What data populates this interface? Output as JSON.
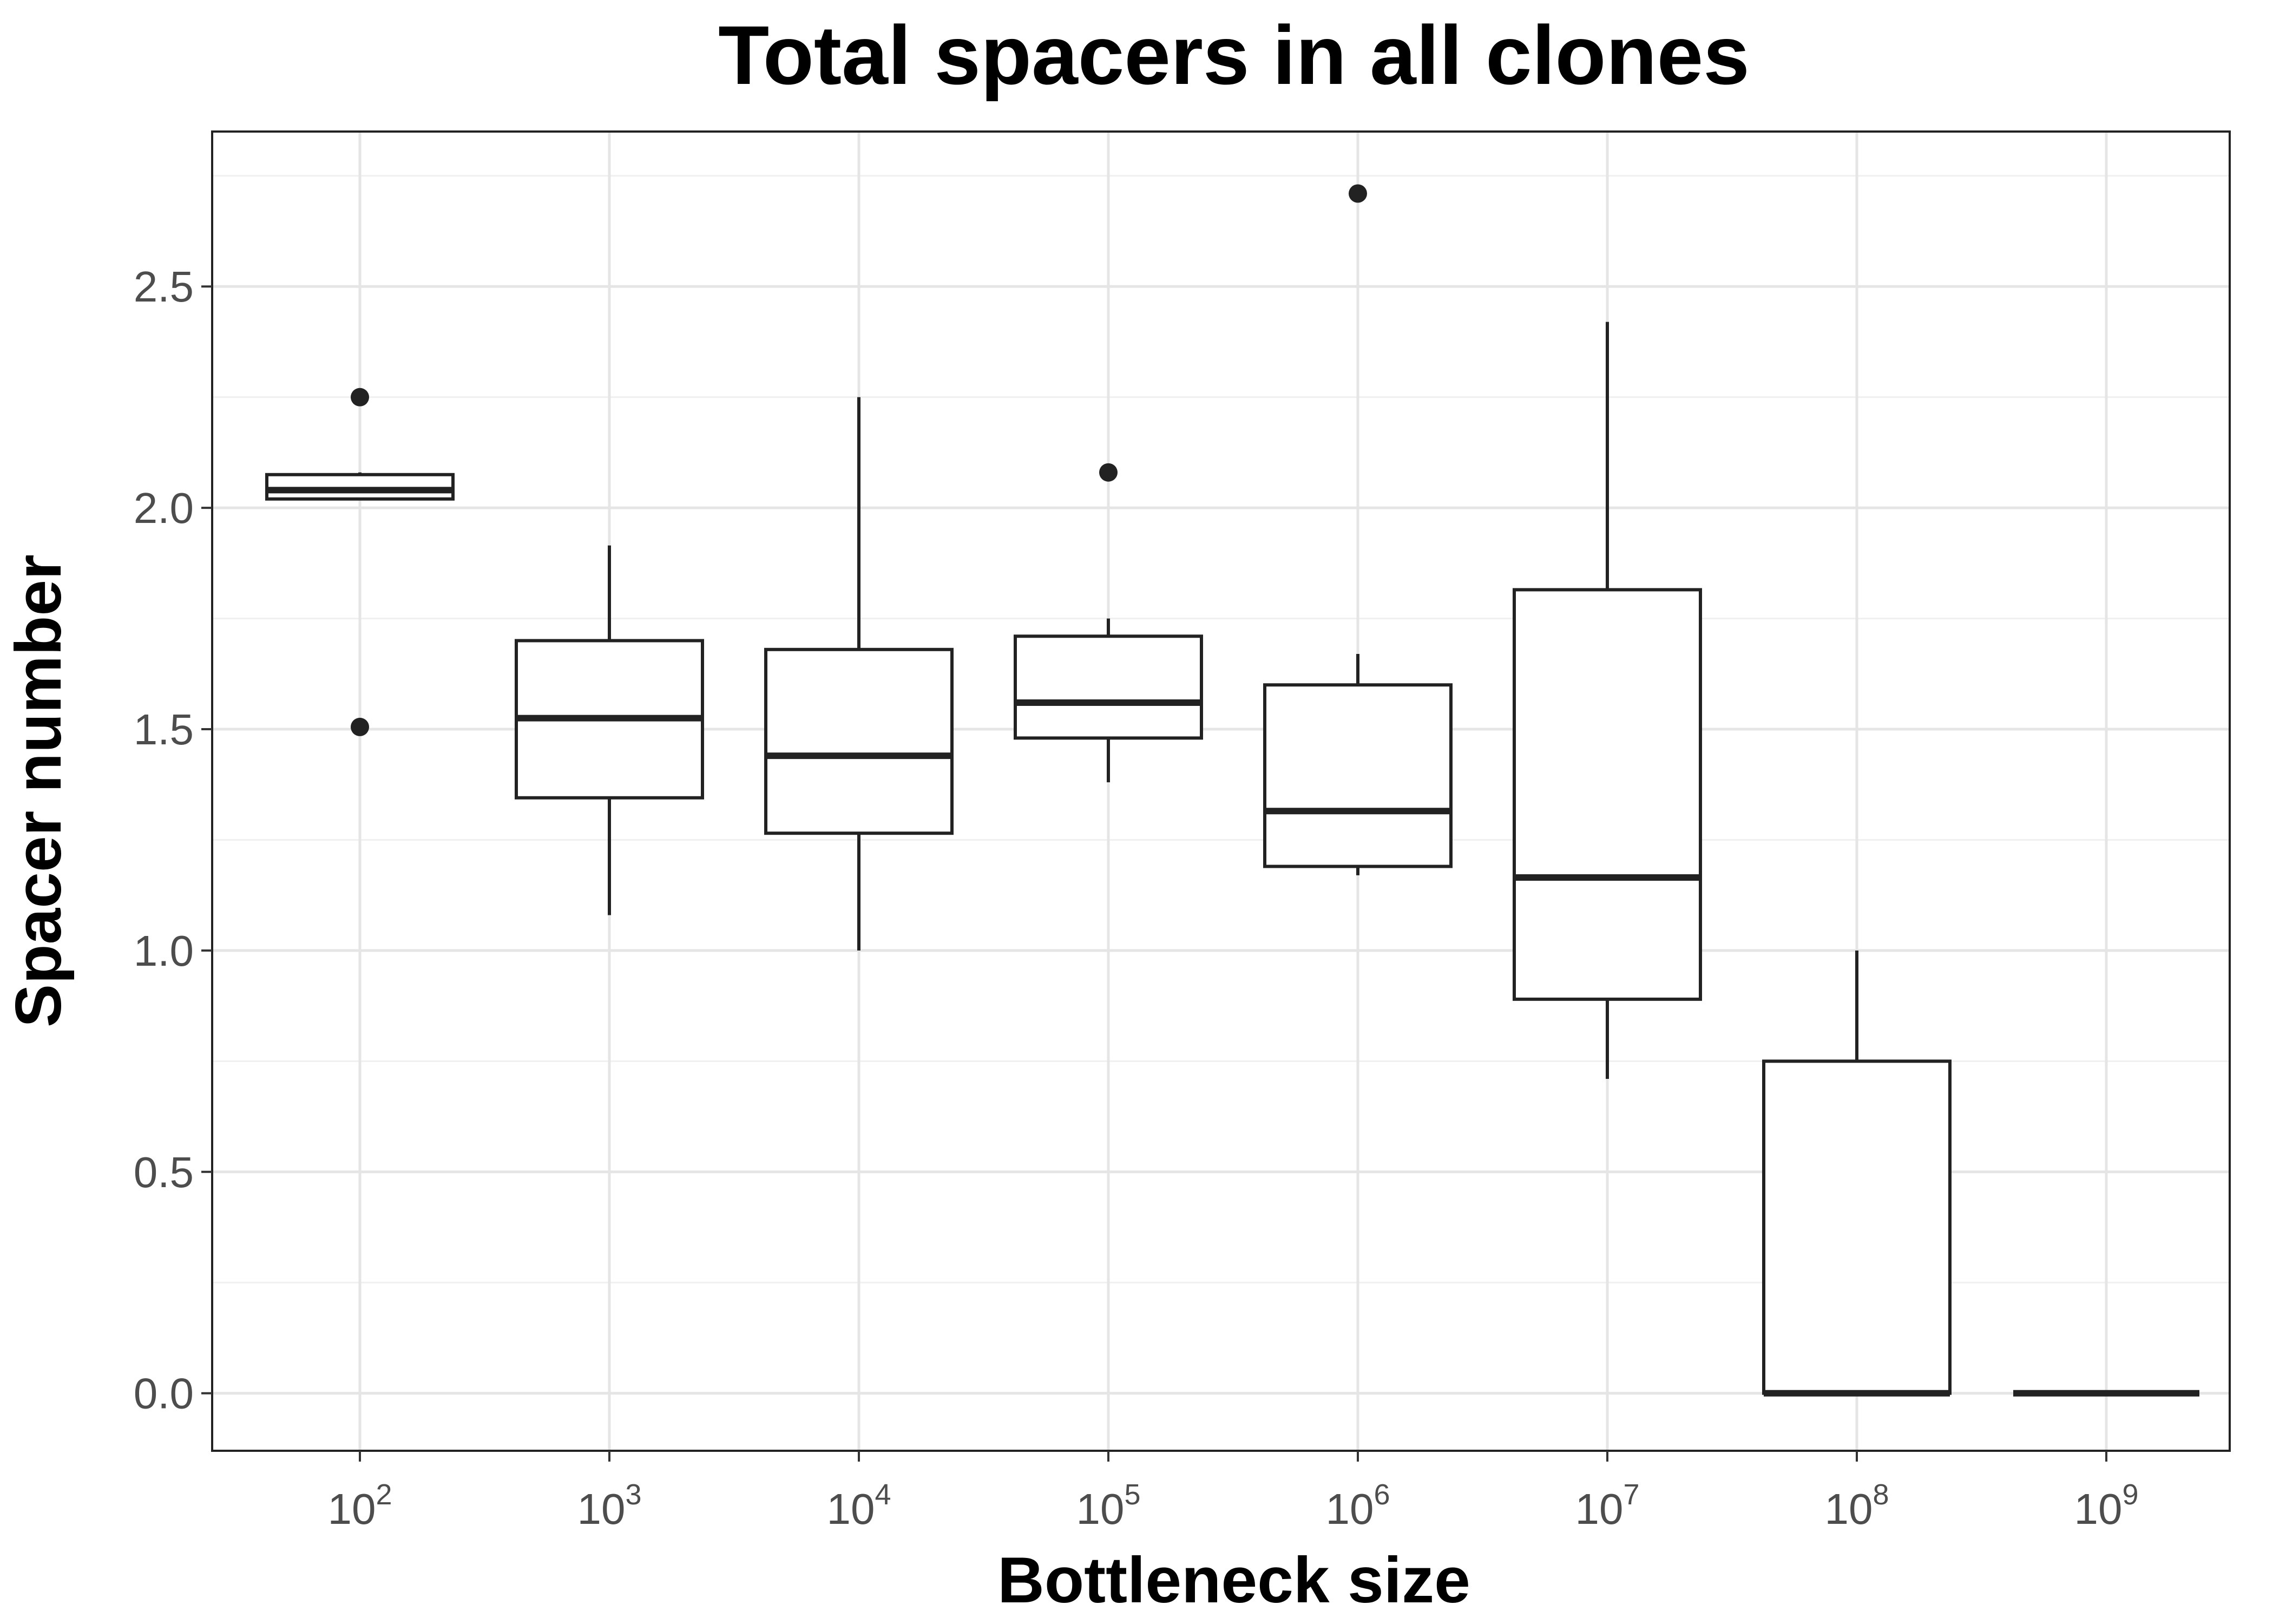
{
  "chart_data": {
    "type": "box",
    "title": "Total spacers in all clones",
    "xlabel": "Bottleneck size",
    "ylabel": "Spacer number",
    "ylim": [
      -0.13,
      2.85
    ],
    "yticks": [
      "0.0",
      "0.5",
      "1.0",
      "1.5",
      "2.0",
      "2.5"
    ],
    "grid": true,
    "categories": [
      {
        "base": "10",
        "exp": "2"
      },
      {
        "base": "10",
        "exp": "3"
      },
      {
        "base": "10",
        "exp": "4"
      },
      {
        "base": "10",
        "exp": "5"
      },
      {
        "base": "10",
        "exp": "6"
      },
      {
        "base": "10",
        "exp": "7"
      },
      {
        "base": "10",
        "exp": "8"
      },
      {
        "base": "10",
        "exp": "9"
      }
    ],
    "boxes": [
      {
        "whisker_low": 2.02,
        "q1": 2.02,
        "median": 2.04,
        "q3": 2.075,
        "whisker_high": 2.08,
        "outliers": [
          2.25,
          1.505
        ]
      },
      {
        "whisker_low": 1.08,
        "q1": 1.345,
        "median": 1.525,
        "q3": 1.7,
        "whisker_high": 1.915,
        "outliers": []
      },
      {
        "whisker_low": 1.0,
        "q1": 1.265,
        "median": 1.44,
        "q3": 1.68,
        "whisker_high": 2.25,
        "outliers": []
      },
      {
        "whisker_low": 1.38,
        "q1": 1.48,
        "median": 1.56,
        "q3": 1.71,
        "whisker_high": 1.75,
        "outliers": [
          2.08
        ]
      },
      {
        "whisker_low": 1.17,
        "q1": 1.19,
        "median": 1.315,
        "q3": 1.6,
        "whisker_high": 1.67,
        "outliers": [
          2.71
        ]
      },
      {
        "whisker_low": 0.71,
        "q1": 0.89,
        "median": 1.165,
        "q3": 1.815,
        "whisker_high": 2.42,
        "outliers": []
      },
      {
        "whisker_low": 0.0,
        "q1": 0.0,
        "median": 0.0,
        "q3": 0.75,
        "whisker_high": 1.0,
        "outliers": []
      },
      {
        "whisker_low": 0.0,
        "q1": 0.0,
        "median": 0.0,
        "q3": 0.0,
        "whisker_high": 0.0,
        "outliers": []
      }
    ],
    "colors": {
      "box_stroke": "#222222",
      "box_fill": "#ffffff",
      "grid_major": "#e5e5e5",
      "grid_minor": "#f0f0f0",
      "panel_border": "#222222",
      "outlier": "#222222"
    }
  }
}
